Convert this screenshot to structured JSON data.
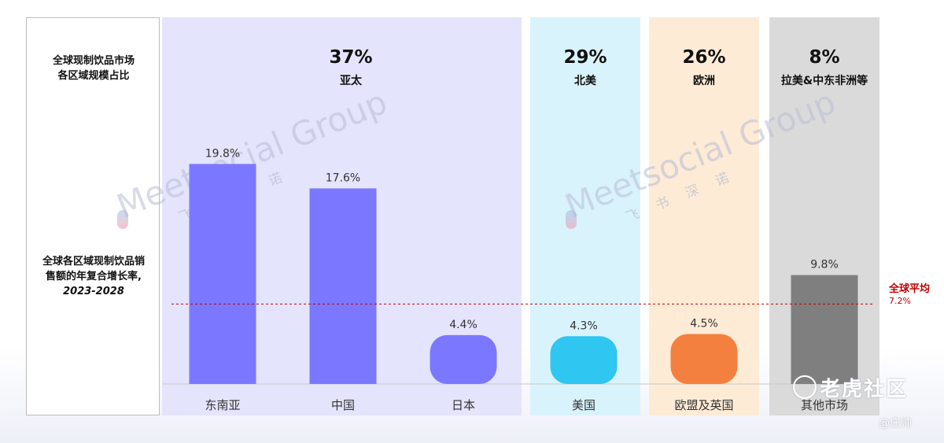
{
  "panel": {
    "share_title": "全球现制饮品市场\n各区域规模占比",
    "cagr_title": "全球各区域现制饮品销\n售额的年复合增长率,",
    "cagr_years": "2023-2028"
  },
  "regions": [
    {
      "share": "37%",
      "name": "亚太",
      "color": "#e4e4fc"
    },
    {
      "share": "29%",
      "name": "北美",
      "color": "#d9f3fc"
    },
    {
      "share": "26%",
      "name": "欧洲",
      "color": "#fdebd6"
    },
    {
      "share": "8%",
      "name": "拉美&中东非洲等",
      "color": "#dadada"
    }
  ],
  "global_average": {
    "label": "全球平均",
    "value_label": "7.2%",
    "value": 7.2,
    "color": "#c00000"
  },
  "watermark": {
    "brand": "Meetsocial Group",
    "cn": "飞书深诺"
  },
  "corner": {
    "site": "老虎社区",
    "author": "@庄帅"
  },
  "chart_data": {
    "type": "bar",
    "categories": [
      "东南亚",
      "中国",
      "日本",
      "美国",
      "欧盟及英国",
      "其他市场"
    ],
    "values": [
      19.8,
      17.6,
      4.4,
      4.3,
      4.5,
      9.8
    ],
    "value_labels": [
      "19.8%",
      "17.6%",
      "4.4%",
      "4.3%",
      "4.5%",
      "9.8%"
    ],
    "colors": [
      "#7b78ff",
      "#7b78ff",
      "#7b78ff",
      "#2fc6f1",
      "#f4803f",
      "#7f7f7f"
    ],
    "ylim": [
      0,
      21.1
    ],
    "reference_line": 7.2,
    "title": "",
    "xlabel": "",
    "ylabel": ""
  }
}
